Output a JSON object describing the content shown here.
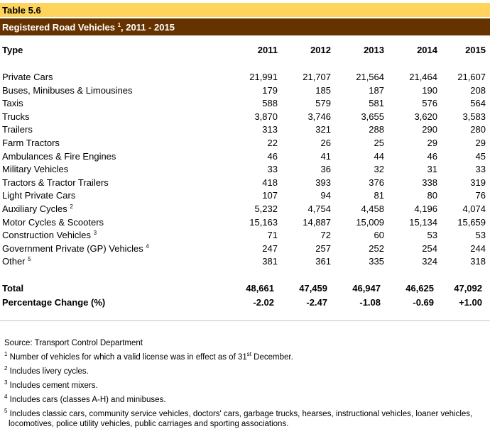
{
  "table_number": "Table 5.6",
  "title": "Registered Road Vehicles",
  "title_sup": "1",
  "title_years": ", 2011 - 2015",
  "colors": {
    "table_band": "#ffd45c",
    "title_band": "#663300"
  },
  "header": {
    "label": "Type",
    "years": [
      "2011",
      "2012",
      "2013",
      "2014",
      "2015"
    ]
  },
  "rows": [
    {
      "label": "Private Cars",
      "sup": "",
      "values": [
        "21,991",
        "21,707",
        "21,564",
        "21,464",
        "21,607"
      ]
    },
    {
      "label": "Buses, Minibuses & Limousines",
      "sup": "",
      "values": [
        "179",
        "185",
        "187",
        "190",
        "208"
      ]
    },
    {
      "label": "Taxis",
      "sup": "",
      "values": [
        "588",
        "579",
        "581",
        "576",
        "564"
      ]
    },
    {
      "label": "Trucks",
      "sup": "",
      "values": [
        "3,870",
        "3,746",
        "3,655",
        "3,620",
        "3,583"
      ]
    },
    {
      "label": "Trailers",
      "sup": "",
      "values": [
        "313",
        "321",
        "288",
        "290",
        "280"
      ]
    },
    {
      "label": "Farm Tractors",
      "sup": "",
      "values": [
        "22",
        "26",
        "25",
        "29",
        "29"
      ]
    },
    {
      "label": "Ambulances & Fire Engines",
      "sup": "",
      "values": [
        "46",
        "41",
        "44",
        "46",
        "45"
      ]
    },
    {
      "label": "Military Vehicles",
      "sup": "",
      "values": [
        "33",
        "36",
        "32",
        "31",
        "33"
      ]
    },
    {
      "label": "Tractors & Tractor Trailers",
      "sup": "",
      "values": [
        "418",
        "393",
        "376",
        "338",
        "319"
      ]
    },
    {
      "label": "Light Private Cars",
      "sup": "",
      "values": [
        "107",
        "94",
        "81",
        "80",
        "76"
      ]
    },
    {
      "label": "Auxiliary Cycles",
      "sup": "2",
      "values": [
        "5,232",
        "4,754",
        "4,458",
        "4,196",
        "4,074"
      ]
    },
    {
      "label": "Motor Cycles & Scooters",
      "sup": "",
      "values": [
        "15,163",
        "14,887",
        "15,009",
        "15,134",
        "15,659"
      ]
    },
    {
      "label": "Construction Vehicles",
      "sup": "3",
      "values": [
        "71",
        "72",
        "60",
        "53",
        "53"
      ]
    },
    {
      "label": "Government Private (GP) Vehicles",
      "sup": "4",
      "values": [
        "247",
        "257",
        "252",
        "254",
        "244"
      ]
    },
    {
      "label": "Other",
      "sup": "5",
      "values": [
        "381",
        "361",
        "335",
        "324",
        "318"
      ]
    }
  ],
  "total": {
    "label": "Total",
    "values": [
      "48,661",
      "47,459",
      "46,947",
      "46,625",
      "47,092"
    ]
  },
  "pct_change": {
    "label": "Percentage Change (%)",
    "values": [
      "-2.02",
      "-2.47",
      "-1.08",
      "-0.69",
      "+1.00"
    ]
  },
  "source": "Source: Transport Control Department",
  "footnotes": [
    {
      "mark": "1",
      "text": "Number of vehicles for which a valid license was in effect as of 31",
      "sup2": "st",
      "text2": " December."
    },
    {
      "mark": "2",
      "text": "Includes livery cycles."
    },
    {
      "mark": "3",
      "text": "Includes cement mixers."
    },
    {
      "mark": "4",
      "text": "Includes cars (classes A-H) and minibuses."
    },
    {
      "mark": "5",
      "text": "Includes classic cars, community service vehicles, doctors' cars, garbage trucks, hearses, instructional vehicles, loaner vehicles,",
      "text_line2": "locomotives, police utility vehicles, public carriages and sporting associations."
    }
  ]
}
